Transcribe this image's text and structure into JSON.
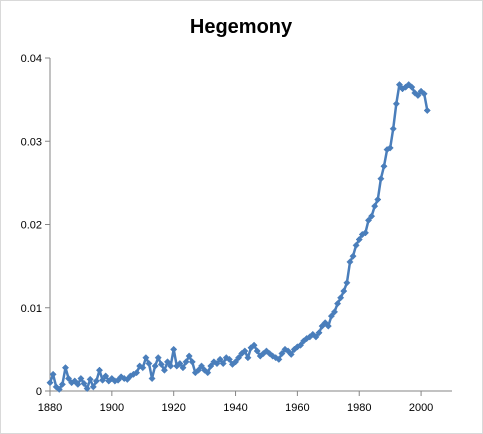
{
  "chart_data": {
    "type": "line",
    "title": "Hegemony",
    "xlabel": "",
    "ylabel": "",
    "xlim": [
      1880,
      2010
    ],
    "ylim": [
      0,
      0.04
    ],
    "x_ticks": [
      "1880",
      "1900",
      "1920",
      "1940",
      "1960",
      "1980",
      "2000"
    ],
    "y_ticks": [
      "0",
      "0.01",
      "0.02",
      "0.03",
      "0.04"
    ],
    "grid": false,
    "legend": "none",
    "series": [
      {
        "color": "#4a7ebb",
        "marker": "diamond",
        "x": [
          1880,
          1881,
          1882,
          1883,
          1884,
          1885,
          1886,
          1887,
          1888,
          1889,
          1890,
          1891,
          1892,
          1893,
          1894,
          1895,
          1896,
          1897,
          1898,
          1899,
          1900,
          1901,
          1902,
          1903,
          1904,
          1905,
          1906,
          1907,
          1908,
          1909,
          1910,
          1911,
          1912,
          1913,
          1914,
          1915,
          1916,
          1917,
          1918,
          1919,
          1920,
          1921,
          1922,
          1923,
          1924,
          1925,
          1926,
          1927,
          1928,
          1929,
          1930,
          1931,
          1932,
          1933,
          1934,
          1935,
          1936,
          1937,
          1938,
          1939,
          1940,
          1941,
          1942,
          1943,
          1944,
          1945,
          1946,
          1947,
          1948,
          1949,
          1950,
          1951,
          1952,
          1953,
          1954,
          1955,
          1956,
          1957,
          1958,
          1959,
          1960,
          1961,
          1962,
          1963,
          1964,
          1965,
          1966,
          1967,
          1968,
          1969,
          1970,
          1971,
          1972,
          1973,
          1974,
          1975,
          1976,
          1977,
          1978,
          1979,
          1980,
          1981,
          1982,
          1983,
          1984,
          1985,
          1986,
          1987,
          1988,
          1989,
          1990,
          1991,
          1992,
          1993,
          1994,
          1995,
          1996,
          1997,
          1998,
          1999,
          2000,
          2001,
          2002
        ],
        "values": [
          0.001,
          0.002,
          0.0005,
          0.0002,
          0.0008,
          0.0028,
          0.0015,
          0.001,
          0.0012,
          0.0008,
          0.0015,
          0.0009,
          0.0003,
          0.0014,
          0.0005,
          0.0012,
          0.0025,
          0.0013,
          0.0018,
          0.0012,
          0.0015,
          0.0012,
          0.0013,
          0.0017,
          0.0015,
          0.0014,
          0.0018,
          0.002,
          0.0022,
          0.003,
          0.0028,
          0.004,
          0.0033,
          0.0015,
          0.003,
          0.004,
          0.0032,
          0.0025,
          0.0035,
          0.003,
          0.005,
          0.003,
          0.0033,
          0.0028,
          0.0035,
          0.0042,
          0.0035,
          0.0022,
          0.0025,
          0.003,
          0.0025,
          0.0022,
          0.003,
          0.0035,
          0.0033,
          0.0038,
          0.0033,
          0.004,
          0.0038,
          0.0032,
          0.0035,
          0.004,
          0.0045,
          0.0048,
          0.004,
          0.0052,
          0.0055,
          0.0048,
          0.0042,
          0.0045,
          0.0048,
          0.0045,
          0.0042,
          0.004,
          0.0038,
          0.0045,
          0.005,
          0.0048,
          0.0044,
          0.005,
          0.0053,
          0.0055,
          0.006,
          0.0063,
          0.0065,
          0.0068,
          0.0065,
          0.007,
          0.0078,
          0.0082,
          0.0078,
          0.009,
          0.0095,
          0.0105,
          0.0112,
          0.012,
          0.013,
          0.0155,
          0.0162,
          0.0175,
          0.0182,
          0.0188,
          0.019,
          0.0205,
          0.021,
          0.0222,
          0.023,
          0.0255,
          0.027,
          0.029,
          0.0292,
          0.0315,
          0.0345,
          0.0368,
          0.0363,
          0.0365,
          0.0368,
          0.0365,
          0.0358,
          0.0355,
          0.036,
          0.0357,
          0.0337
        ]
      }
    ]
  }
}
